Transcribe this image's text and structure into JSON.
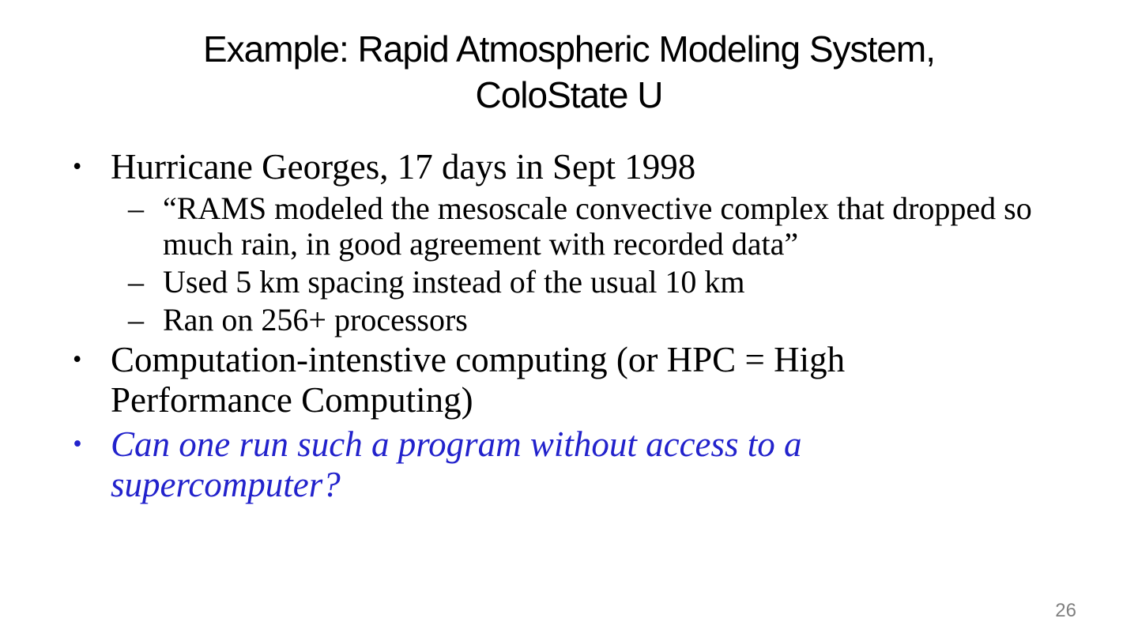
{
  "slide": {
    "title_lines": {
      "line1": "Example: Rapid Atmospheric Modeling System,",
      "line2": "ColoState U"
    },
    "markers": {
      "bullet_glyph": "•",
      "dash_glyph": "–"
    },
    "bullets": [
      {
        "level": 1,
        "text": "Hurricane Georges, 17 days in Sept 1998"
      },
      {
        "level": 2,
        "text": "“RAMS modeled the mesoscale convective complex that dropped so much rain, in good agreement with recorded data”"
      },
      {
        "level": 2,
        "text": "Used 5 km spacing instead of the usual 10 km"
      },
      {
        "level": 2,
        "text": "Ran on 256+ processors"
      },
      {
        "level": 1,
        "text": "Computation-intenstive computing (or HPC = High Performance Computing)"
      },
      {
        "level": 1,
        "text": "Can one run such a program without access to a supercomputer?",
        "emphasis": true
      }
    ],
    "page_number": "26",
    "colors": {
      "text": "#000000",
      "emphasis_blue": "#2222CC",
      "page_number_gray": "#808080",
      "background": "#FFFFFF"
    }
  }
}
